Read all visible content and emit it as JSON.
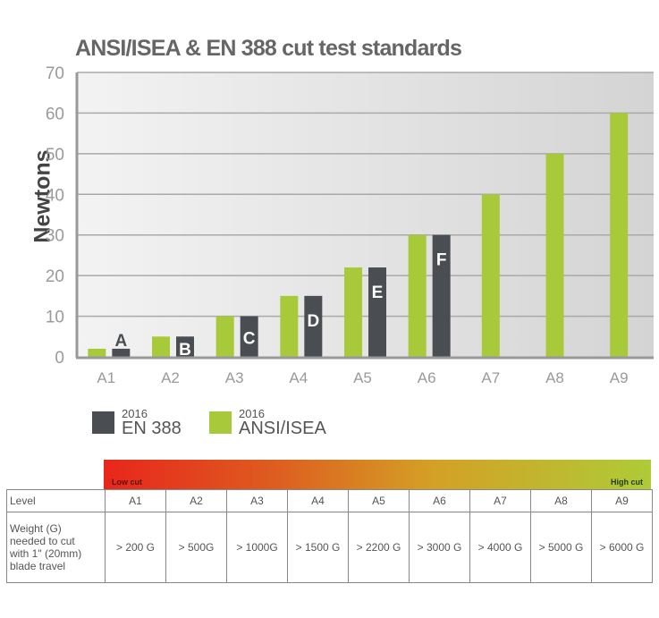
{
  "title": "ANSI/ISEA & EN 388 cut test standards",
  "colors": {
    "ansi": "#a8c93a",
    "en": "#4a4e52",
    "grid": "#aaaaaa",
    "axis": "#999999"
  },
  "chart_data": {
    "type": "bar",
    "title": "ANSI/ISEA & EN 388 cut test standards",
    "xlabel": "",
    "ylabel": "Newtons",
    "ylim": [
      0,
      70
    ],
    "yticks": [
      0,
      10,
      20,
      30,
      40,
      50,
      60,
      70
    ],
    "grid": true,
    "categories": [
      "A1",
      "A2",
      "A3",
      "A4",
      "A5",
      "A6",
      "A7",
      "A8",
      "A9"
    ],
    "series": [
      {
        "name": "2016 ANSI/ISEA",
        "values": [
          2,
          5,
          10,
          15,
          22,
          30,
          40,
          50,
          60
        ]
      },
      {
        "name": "2016 EN 388",
        "values": [
          2,
          5,
          10,
          15,
          22,
          30,
          null,
          null,
          null
        ],
        "labels": [
          "A",
          "B",
          "C",
          "D",
          "E",
          "F",
          null,
          null,
          null
        ]
      }
    ],
    "legend": [
      {
        "year": "2016",
        "name": "EN 388"
      },
      {
        "year": "2016",
        "name": "ANSI/ISEA"
      }
    ],
    "legend_position": "bottom-left"
  },
  "scale": {
    "low_label": "Low cut",
    "high_label": "High cut"
  },
  "table": {
    "level_header": "Level",
    "weight_header": [
      "Weight (G)",
      "needed to cut",
      "with 1\" (20mm)",
      "blade travel"
    ],
    "levels": [
      "A1",
      "A2",
      "A3",
      "A4",
      "A5",
      "A6",
      "A7",
      "A8",
      "A9"
    ],
    "weights": [
      "> 200 G",
      "> 500G",
      "> 1000G",
      "> 1500 G",
      "> 2200 G",
      "> 3000 G",
      "> 4000 G",
      "> 5000 G",
      "> 6000 G"
    ]
  }
}
